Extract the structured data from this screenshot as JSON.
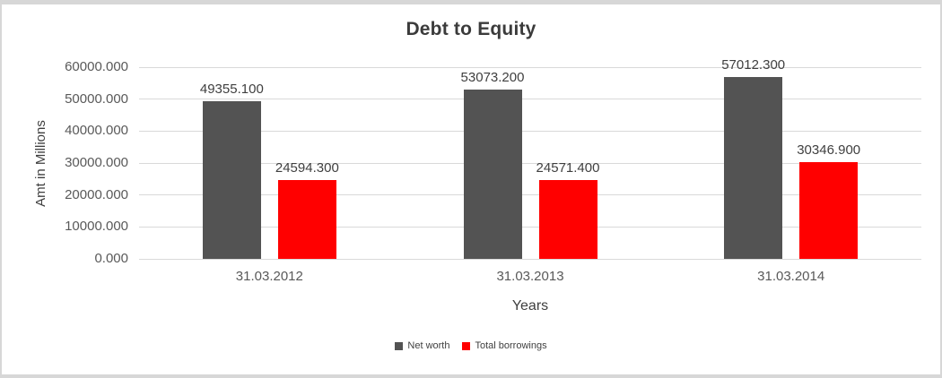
{
  "window": {
    "background_color": "#ffffff",
    "border_color": "#d7d7d7"
  },
  "chart_data": {
    "type": "bar",
    "title": "Debt to Equity",
    "xlabel": "Years",
    "ylabel": "Amt in Millions",
    "categories": [
      "31.03.2012",
      "31.03.2013",
      "31.03.2014"
    ],
    "series": [
      {
        "name": "Net worth",
        "color": "#535353",
        "values": [
          49355.1,
          53073.2,
          57012.3
        ],
        "labels": [
          "49355.100",
          "53073.200",
          "57012.300"
        ]
      },
      {
        "name": "Total borrowings",
        "color": "#ff0000",
        "values": [
          24594.3,
          24571.4,
          30346.9
        ],
        "labels": [
          "24594.300",
          "24571.400",
          "30346.900"
        ]
      }
    ],
    "ylim": [
      0,
      60000
    ],
    "ytick_step": 10000,
    "yticks": [
      "0.000",
      "10000.000",
      "20000.000",
      "30000.000",
      "40000.000",
      "50000.000",
      "60000.000"
    ],
    "grid": true,
    "gridline_color": "#d9d9d9",
    "legend_position": "bottom"
  }
}
